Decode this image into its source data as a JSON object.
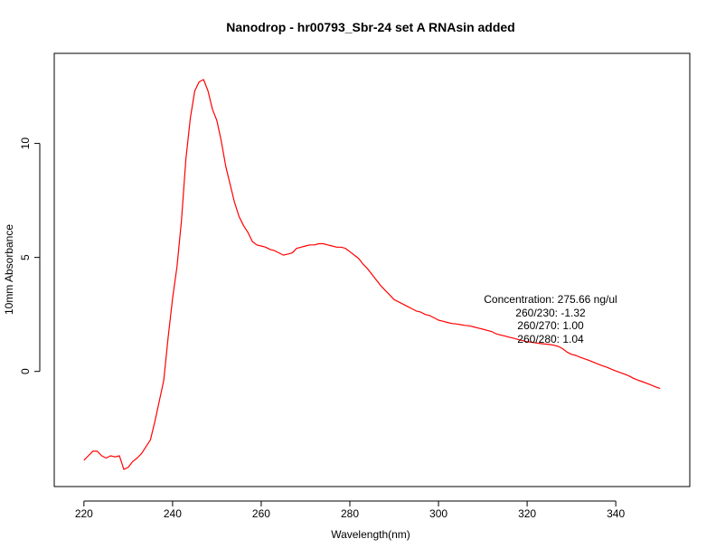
{
  "chart_data": {
    "type": "line",
    "title": "Nanodrop - hr00793_Sbr-24 set A RNAsin added",
    "xlabel": "Wavelength(nm)",
    "ylabel": "10mm Absorbance",
    "xlim": [
      213.3,
      356.7
    ],
    "ylim": [
      -5.05,
      13.95
    ],
    "x_ticks": [
      220,
      240,
      260,
      280,
      300,
      320,
      340
    ],
    "y_ticks": [
      0,
      5,
      10
    ],
    "grid": false,
    "line_color": "#ff0000",
    "series": [
      {
        "x": [
          220,
          221,
          222,
          223,
          224,
          225,
          226,
          227,
          228,
          229,
          230,
          231,
          232,
          233,
          234,
          235,
          236,
          237,
          238,
          239,
          240,
          241,
          242,
          243,
          244,
          245,
          246,
          247,
          248,
          249,
          250,
          251,
          252,
          253,
          254,
          255,
          256,
          257,
          258,
          259,
          260,
          261,
          262,
          263,
          264,
          265,
          266,
          267,
          268,
          269,
          270,
          271,
          272,
          273,
          274,
          275,
          276,
          277,
          278,
          279,
          280,
          281,
          282,
          283,
          284,
          285,
          286,
          287,
          288,
          289,
          290,
          291,
          292,
          293,
          294,
          295,
          296,
          297,
          298,
          299,
          300,
          301,
          302,
          303,
          304,
          305,
          306,
          307,
          308,
          309,
          310,
          311,
          312,
          313,
          314,
          315,
          316,
          317,
          318,
          319,
          320,
          321,
          322,
          323,
          324,
          325,
          326,
          327,
          328,
          329,
          330,
          331,
          332,
          333,
          334,
          335,
          336,
          337,
          338,
          339,
          340,
          341,
          342,
          343,
          344,
          345,
          346,
          347,
          348,
          349,
          350
        ],
        "y": [
          -3.9,
          -3.7,
          -3.5,
          -3.5,
          -3.7,
          -3.8,
          -3.7,
          -3.75,
          -3.7,
          -4.3,
          -4.2,
          -3.95,
          -3.8,
          -3.6,
          -3.3,
          -3.0,
          -2.2,
          -1.3,
          -0.4,
          1.5,
          3.2,
          4.6,
          6.6,
          9.3,
          11.1,
          12.3,
          12.7,
          12.8,
          12.3,
          11.5,
          11.0,
          10.1,
          9.0,
          8.2,
          7.4,
          6.8,
          6.4,
          6.1,
          5.7,
          5.55,
          5.5,
          5.45,
          5.35,
          5.3,
          5.2,
          5.1,
          5.15,
          5.2,
          5.4,
          5.45,
          5.5,
          5.55,
          5.55,
          5.6,
          5.6,
          5.55,
          5.5,
          5.45,
          5.45,
          5.4,
          5.25,
          5.1,
          4.95,
          4.7,
          4.5,
          4.25,
          4.0,
          3.75,
          3.55,
          3.35,
          3.15,
          3.05,
          2.95,
          2.85,
          2.75,
          2.65,
          2.6,
          2.5,
          2.45,
          2.35,
          2.25,
          2.2,
          2.15,
          2.1,
          2.08,
          2.05,
          2.02,
          2.0,
          1.95,
          1.9,
          1.85,
          1.8,
          1.75,
          1.65,
          1.6,
          1.55,
          1.5,
          1.45,
          1.4,
          1.35,
          1.3,
          1.28,
          1.25,
          1.22,
          1.2,
          1.18,
          1.15,
          1.1,
          1.0,
          0.85,
          0.75,
          0.7,
          0.62,
          0.55,
          0.48,
          0.4,
          0.32,
          0.25,
          0.18,
          0.1,
          0.02,
          -0.05,
          -0.12,
          -0.2,
          -0.3,
          -0.38,
          -0.45,
          -0.52,
          -0.6,
          -0.68,
          -0.75
        ]
      }
    ],
    "annotations": [
      "Concentration: 275.66 ng/ul",
      "260/230: -1.32",
      "260/270: 1.00",
      "260/280: 1.04"
    ]
  }
}
